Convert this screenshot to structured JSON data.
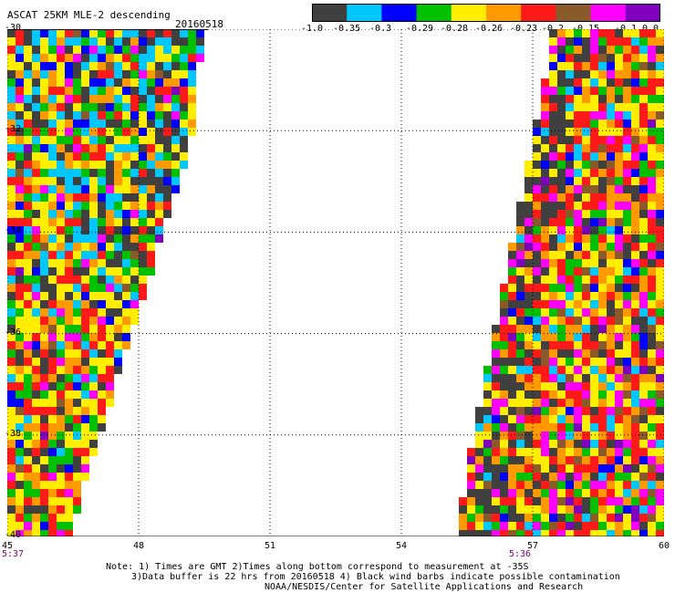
{
  "header": {
    "title": "ASCAT 25KM MLE-2 descending",
    "date": "20160518"
  },
  "colorbar": {
    "colors": [
      "#404040",
      "#00c8ff",
      "#0000ff",
      "#00c000",
      "#ffee00",
      "#ff9900",
      "#ff1a1a",
      "#8b5a2b",
      "#ff00ff",
      "#8000c0"
    ],
    "labels": [
      "-1.0",
      "-0.35",
      "-0.3",
      "-0.29",
      "-0.28",
      "-0.26",
      "-0.23",
      "-0.2",
      "-0.15",
      "-0.1",
      "0.0"
    ]
  },
  "map": {
    "lon_range": [
      45,
      60
    ],
    "lat_range": [
      -40,
      -30
    ],
    "lon_ticks": [
      "45",
      "48",
      "51",
      "54",
      "57",
      "60"
    ],
    "lat_ticks": [
      "-30",
      "-32",
      "-34",
      "-36",
      "-38",
      "-40"
    ],
    "grid": "dotted",
    "swaths": [
      {
        "name": "west",
        "pass_time": "5:37"
      },
      {
        "name": "east",
        "pass_time": "5:36"
      }
    ]
  },
  "notes": {
    "line1": "Note: 1) Times are GMT 2)Times along bottom correspond to measurement at -35S",
    "line2": "3)Data buffer is 22 hrs from 20160518 4) Black wind barbs indicate possible contamination",
    "line3": "NOAA/NESDIS/Center for Satellite Applications and Research"
  }
}
